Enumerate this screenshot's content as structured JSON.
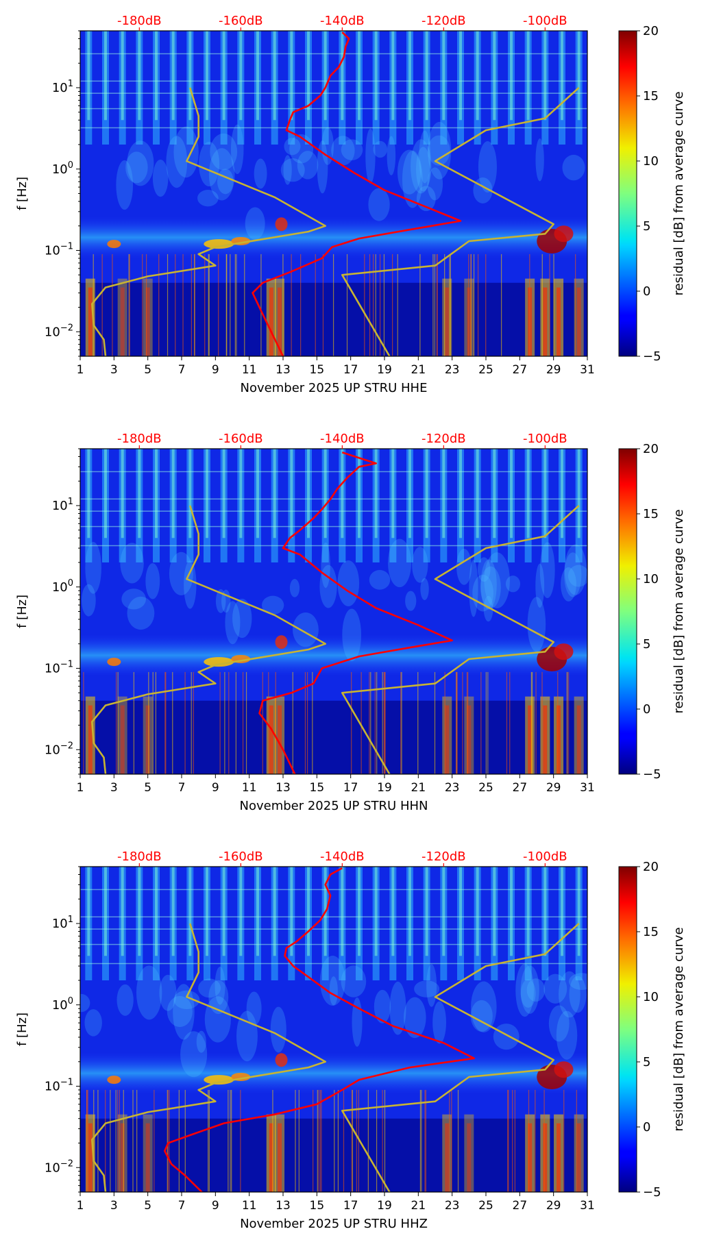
{
  "figure": {
    "background": "#ffffff"
  },
  "chart_data": [
    {
      "type": "heatmap",
      "xlabel": "November 2025 UP STRU  HHE",
      "ylabel": "f [Hz]",
      "x_ticks": [
        1,
        3,
        5,
        7,
        9,
        11,
        13,
        15,
        17,
        19,
        21,
        23,
        25,
        27,
        29,
        31
      ],
      "xlim": [
        1,
        31
      ],
      "y_scale": "log",
      "ylim": [
        0.005,
        50
      ],
      "y_ticks": [
        {
          "v": 0.01,
          "b": "10",
          "e": "−2"
        },
        {
          "v": 0.1,
          "b": "10",
          "e": "−1"
        },
        {
          "v": 1,
          "b": "10",
          "e": "0"
        },
        {
          "v": 10,
          "b": "10",
          "e": "1"
        }
      ],
      "colorbar": {
        "label": "residual [dB] from average curve",
        "range": [
          -5,
          20
        ],
        "ticks": [
          "20",
          "15",
          "10",
          "5",
          "0",
          "−5"
        ],
        "colormap": "jet"
      },
      "top_axis": {
        "color": "#ff0000",
        "ticks": [
          "-180dB",
          "-160dB",
          "-140dB",
          "-120dB",
          "-100dB"
        ],
        "tick_x": [
          4.5,
          10.5,
          16.5,
          22.5,
          28.5
        ]
      },
      "series": [
        {
          "color": "#ff0000",
          "points": [
            [
              13.0,
              0.005
            ],
            [
              12.3,
              0.01
            ],
            [
              11.6,
              0.02
            ],
            [
              11.2,
              0.03
            ],
            [
              11.8,
              0.04
            ],
            [
              13.5,
              0.055
            ],
            [
              15.3,
              0.08
            ],
            [
              15.9,
              0.11
            ],
            [
              17.5,
              0.14
            ],
            [
              20.5,
              0.18
            ],
            [
              23.5,
              0.23
            ],
            [
              21.5,
              0.34
            ],
            [
              19.0,
              0.55
            ],
            [
              17.2,
              0.9
            ],
            [
              15.5,
              1.5
            ],
            [
              14.0,
              2.5
            ],
            [
              13.2,
              3
            ],
            [
              13.4,
              4
            ],
            [
              13.6,
              5
            ],
            [
              14.5,
              6
            ],
            [
              15.2,
              8
            ],
            [
              15.5,
              10
            ],
            [
              15.8,
              14
            ],
            [
              16.3,
              18
            ],
            [
              16.6,
              24
            ],
            [
              16.7,
              32
            ],
            [
              16.9,
              40
            ],
            [
              16.5,
              48
            ]
          ]
        },
        {
          "color": "#c8b432",
          "points": [
            [
              19.3,
              0.005
            ],
            [
              16.5,
              0.05
            ],
            [
              22.0,
              0.065
            ],
            [
              24.0,
              0.13
            ],
            [
              28.5,
              0.16
            ],
            [
              29.0,
              0.21
            ],
            [
              22.0,
              1.25
            ],
            [
              25.0,
              3
            ],
            [
              28.5,
              4.2
            ],
            [
              30.5,
              10
            ]
          ]
        },
        {
          "color": "#c8b432",
          "points": [
            [
              2.5,
              0.005
            ],
            [
              2.4,
              0.008
            ],
            [
              1.8,
              0.012
            ],
            [
              1.7,
              0.022
            ],
            [
              2.5,
              0.035
            ],
            [
              5.0,
              0.048
            ],
            [
              9.0,
              0.065
            ],
            [
              8.0,
              0.09
            ],
            [
              9.0,
              0.11
            ],
            [
              14.5,
              0.17
            ],
            [
              15.5,
              0.2
            ],
            [
              12.5,
              0.45
            ],
            [
              7.3,
              1.25
            ],
            [
              8.0,
              2.5
            ],
            [
              8.0,
              4.5
            ],
            [
              7.5,
              10
            ]
          ]
        }
      ]
    },
    {
      "type": "heatmap",
      "xlabel": "November 2025 UP STRU  HHN",
      "ylabel": "f [Hz]",
      "x_ticks": [
        1,
        3,
        5,
        7,
        9,
        11,
        13,
        15,
        17,
        19,
        21,
        23,
        25,
        27,
        29,
        31
      ],
      "xlim": [
        1,
        31
      ],
      "y_scale": "log",
      "ylim": [
        0.005,
        50
      ],
      "y_ticks": [
        {
          "v": 0.01,
          "b": "10",
          "e": "−2"
        },
        {
          "v": 0.1,
          "b": "10",
          "e": "−1"
        },
        {
          "v": 1,
          "b": "10",
          "e": "0"
        },
        {
          "v": 10,
          "b": "10",
          "e": "1"
        }
      ],
      "colorbar": {
        "label": "residual [dB] from average curve",
        "range": [
          -5,
          20
        ],
        "ticks": [
          "20",
          "15",
          "10",
          "5",
          "0",
          "−5"
        ],
        "colormap": "jet"
      },
      "top_axis": {
        "color": "#ff0000",
        "ticks": [
          "-180dB",
          "-160dB",
          "-140dB",
          "-120dB",
          "-100dB"
        ],
        "tick_x": [
          4.5,
          10.5,
          16.5,
          22.5,
          28.5
        ]
      },
      "series": [
        {
          "color": "#ff0000",
          "points": [
            [
              13.7,
              0.005
            ],
            [
              13.0,
              0.01
            ],
            [
              12.3,
              0.018
            ],
            [
              11.6,
              0.028
            ],
            [
              11.8,
              0.04
            ],
            [
              13.5,
              0.05
            ],
            [
              14.8,
              0.065
            ],
            [
              15.3,
              0.1
            ],
            [
              17.5,
              0.14
            ],
            [
              20.5,
              0.18
            ],
            [
              23.0,
              0.22
            ],
            [
              21.0,
              0.34
            ],
            [
              18.5,
              0.55
            ],
            [
              16.8,
              0.9
            ],
            [
              15.3,
              1.5
            ],
            [
              14.0,
              2.5
            ],
            [
              13.0,
              3
            ],
            [
              13.4,
              4
            ],
            [
              14.0,
              5
            ],
            [
              14.8,
              7
            ],
            [
              15.3,
              9
            ],
            [
              15.8,
              12
            ],
            [
              16.2,
              16
            ],
            [
              16.8,
              22
            ],
            [
              17.5,
              30
            ],
            [
              18.5,
              33
            ],
            [
              16.5,
              45
            ]
          ]
        },
        {
          "color": "#c8b432",
          "points": [
            [
              19.3,
              0.005
            ],
            [
              16.5,
              0.05
            ],
            [
              22.0,
              0.065
            ],
            [
              24.0,
              0.13
            ],
            [
              28.5,
              0.16
            ],
            [
              29.0,
              0.21
            ],
            [
              22.0,
              1.25
            ],
            [
              25.0,
              3
            ],
            [
              28.5,
              4.2
            ],
            [
              30.5,
              10
            ]
          ]
        },
        {
          "color": "#c8b432",
          "points": [
            [
              2.5,
              0.005
            ],
            [
              2.4,
              0.008
            ],
            [
              1.8,
              0.012
            ],
            [
              1.7,
              0.022
            ],
            [
              2.5,
              0.035
            ],
            [
              5.0,
              0.048
            ],
            [
              9.0,
              0.065
            ],
            [
              8.0,
              0.09
            ],
            [
              9.0,
              0.11
            ],
            [
              14.5,
              0.17
            ],
            [
              15.5,
              0.2
            ],
            [
              12.5,
              0.45
            ],
            [
              7.3,
              1.25
            ],
            [
              8.0,
              2.5
            ],
            [
              8.0,
              4.5
            ],
            [
              7.5,
              10
            ]
          ]
        }
      ]
    },
    {
      "type": "heatmap",
      "xlabel": "November 2025 UP STRU  HHZ",
      "ylabel": "f [Hz]",
      "x_ticks": [
        1,
        3,
        5,
        7,
        9,
        11,
        13,
        15,
        17,
        19,
        21,
        23,
        25,
        27,
        29,
        31
      ],
      "xlim": [
        1,
        31
      ],
      "y_scale": "log",
      "ylim": [
        0.005,
        50
      ],
      "y_ticks": [
        {
          "v": 0.01,
          "b": "10",
          "e": "−2"
        },
        {
          "v": 0.1,
          "b": "10",
          "e": "−1"
        },
        {
          "v": 1,
          "b": "10",
          "e": "0"
        },
        {
          "v": 10,
          "b": "10",
          "e": "1"
        }
      ],
      "colorbar": {
        "label": "residual [dB] from average curve",
        "range": [
          -5,
          20
        ],
        "ticks": [
          "20",
          "15",
          "10",
          "5",
          "0",
          "−5"
        ],
        "colormap": "jet"
      },
      "top_axis": {
        "color": "#ff0000",
        "ticks": [
          "-180dB",
          "-160dB",
          "-140dB",
          "-120dB",
          "-100dB"
        ],
        "tick_x": [
          4.5,
          10.5,
          16.5,
          22.5,
          28.5
        ]
      },
      "series": [
        {
          "color": "#ff0000",
          "points": [
            [
              8.2,
              0.005
            ],
            [
              7.2,
              0.008
            ],
            [
              6.4,
              0.011
            ],
            [
              6.0,
              0.016
            ],
            [
              6.2,
              0.02
            ],
            [
              7.5,
              0.025
            ],
            [
              9.5,
              0.035
            ],
            [
              12.5,
              0.045
            ],
            [
              15.0,
              0.06
            ],
            [
              16.5,
              0.09
            ],
            [
              17.5,
              0.12
            ],
            [
              20.5,
              0.17
            ],
            [
              24.3,
              0.22
            ],
            [
              22.5,
              0.34
            ],
            [
              19.5,
              0.55
            ],
            [
              17.5,
              0.9
            ],
            [
              15.8,
              1.4
            ],
            [
              14.5,
              2.2
            ],
            [
              13.6,
              3
            ],
            [
              13.1,
              4
            ],
            [
              13.2,
              5
            ],
            [
              13.8,
              6
            ],
            [
              14.5,
              8
            ],
            [
              15.2,
              11
            ],
            [
              15.6,
              15
            ],
            [
              15.8,
              22
            ],
            [
              15.5,
              30
            ],
            [
              15.8,
              40
            ],
            [
              16.5,
              48
            ]
          ]
        },
        {
          "color": "#c8b432",
          "points": [
            [
              19.3,
              0.005
            ],
            [
              16.5,
              0.05
            ],
            [
              22.0,
              0.065
            ],
            [
              24.0,
              0.13
            ],
            [
              28.5,
              0.16
            ],
            [
              29.0,
              0.21
            ],
            [
              22.0,
              1.25
            ],
            [
              25.0,
              3
            ],
            [
              28.5,
              4.2
            ],
            [
              30.5,
              10
            ]
          ]
        },
        {
          "color": "#c8b432",
          "points": [
            [
              2.5,
              0.005
            ],
            [
              2.4,
              0.008
            ],
            [
              1.8,
              0.012
            ],
            [
              1.7,
              0.022
            ],
            [
              2.5,
              0.035
            ],
            [
              5.0,
              0.048
            ],
            [
              9.0,
              0.065
            ],
            [
              8.0,
              0.09
            ],
            [
              9.0,
              0.11
            ],
            [
              14.5,
              0.17
            ],
            [
              15.5,
              0.2
            ],
            [
              12.5,
              0.45
            ],
            [
              7.3,
              1.25
            ],
            [
              8.0,
              2.5
            ],
            [
              8.0,
              4.5
            ],
            [
              7.5,
              10
            ]
          ]
        }
      ]
    }
  ]
}
